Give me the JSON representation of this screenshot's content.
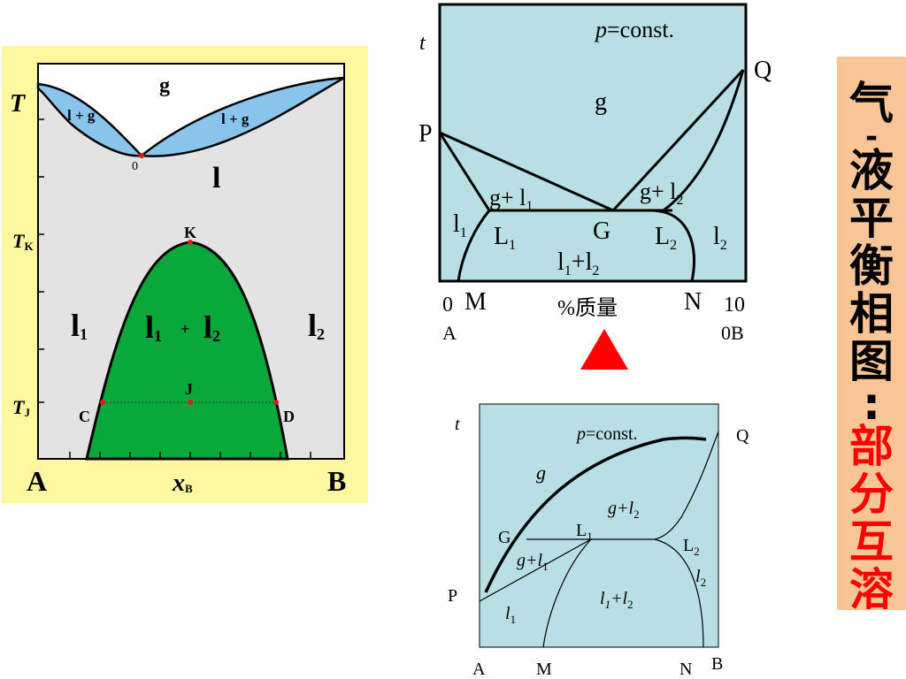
{
  "diagram_left": {
    "labels": {
      "T": "T",
      "g": "g",
      "l_plus_g_left": "l + g",
      "l_plus_g_right": "l + g",
      "zero": "0",
      "l": "l",
      "TK": "T",
      "TK_sub": "K",
      "TJ": "T",
      "TJ_sub": "J",
      "K": "K",
      "J": "J",
      "C": "C",
      "D": "D",
      "l1": "l",
      "l1_sub": "1",
      "l12_a": "l",
      "l12_a_sub": "1",
      "plus": "+",
      "l12_b": "l",
      "l12_b_sub": "2",
      "l2": "l",
      "l2_sub": "2",
      "A": "A",
      "B": "B",
      "xB": "x",
      "xB_sub": "B"
    },
    "colors": {
      "frame": "#fff8a0",
      "plot_bg": "#e3e3e3",
      "blue": "#88c4ec",
      "green": "#08a93a"
    }
  },
  "diagram_top": {
    "labels": {
      "t": "t",
      "p": "p",
      "const": "=const.",
      "Q": "Q",
      "P": "P",
      "g": "g",
      "gl1": "g+ l",
      "gl1_sub": "1",
      "gl2": "g+ l",
      "gl2_sub": "2",
      "l1": "l",
      "l1_sub": "1",
      "L1": "L",
      "L1_sub": "1",
      "G": "G",
      "L2": "L",
      "L2_sub": "2",
      "l2": "l",
      "l2_sub": "2",
      "l1l2": "l",
      "l1l2_s1": "1",
      "l1l2_plus": "+l",
      "l1l2_s2": "2",
      "zero": "0",
      "M": "M",
      "xaxis": "%质量",
      "N": "N",
      "ten": "10",
      "A": "A",
      "zeroB": "0B"
    },
    "colors": {
      "bg": "#b8dfe3",
      "arrow": "#ff0000"
    }
  },
  "diagram_bottom": {
    "labels": {
      "t": "t",
      "p": "p",
      "const": "=const.",
      "Q": "Q",
      "g": "g",
      "gl2": "g+l",
      "gl2_sub": "2",
      "G": "G",
      "L1": "L",
      "L1_sub": "1",
      "L2": "L",
      "L2_sub": "2",
      "gl1": "g+l",
      "gl1_sub": "1",
      "l2": "l",
      "l2_sub": "2",
      "P": "P",
      "l1l2": "l",
      "l1l2_s1": "1",
      "l1l2_plus": "+l",
      "l1l2_s2": "2",
      "l1": "l",
      "l1_sub": "1",
      "A": "A",
      "M": "M",
      "N": "N",
      "B": "B"
    },
    "colors": {
      "bg": "#b8dfe3"
    }
  },
  "sidebar": {
    "black_chars": [
      "气",
      "-",
      "液",
      "平",
      "衡",
      "相",
      "图",
      ":"
    ],
    "red_chars": [
      "部",
      "分",
      "互",
      "溶"
    ],
    "colors": {
      "bg": "#f9c596",
      "black": "#000000",
      "red": "#ff0000"
    }
  }
}
